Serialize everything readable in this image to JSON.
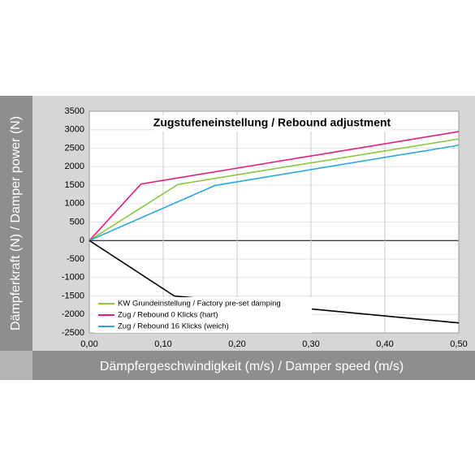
{
  "chart_data": {
    "type": "line",
    "title": "Zugstufeneinstellung / Rebound adjustment",
    "x_label": "Dämpfergeschwindigkeit (m/s) / Damper speed (m/s)",
    "y_label": "Dämpferkraft (N) / Damper power (N)",
    "xlim": [
      0,
      0.5
    ],
    "ylim": [
      -2500,
      3500
    ],
    "xticks": [
      {
        "value": 0,
        "label": "0,00"
      },
      {
        "value": 0.1,
        "label": "0,10"
      },
      {
        "value": 0.2,
        "label": "0,20"
      },
      {
        "value": 0.3,
        "label": "0,30"
      },
      {
        "value": 0.4,
        "label": "0,40"
      },
      {
        "value": 0.5,
        "label": "0,50"
      }
    ],
    "yticks": [
      -2500,
      -2000,
      -1500,
      -1000,
      -500,
      0,
      500,
      1000,
      1500,
      2000,
      2500,
      3000,
      3500
    ],
    "grid": true,
    "legend": "lower left",
    "series": [
      {
        "name": "KW Grundeinstellung / Factory pre-set damping",
        "color": "#8dc63f",
        "x": [
          0,
          0.12,
          0.5
        ],
        "values": [
          0,
          1520,
          2750
        ]
      },
      {
        "name": "Zug / Rebound 0 Klicks (hart)",
        "color": "#e6197f",
        "x": [
          0,
          0.07,
          0.5
        ],
        "values": [
          0,
          1530,
          2950
        ]
      },
      {
        "name": "Zug / Rebound 16 Klicks (weich)",
        "color": "#29a8e0",
        "x": [
          0,
          0.17,
          0.5
        ],
        "values": [
          0,
          1490,
          2580
        ]
      },
      {
        "color": "#000000",
        "x": [
          0,
          0.115,
          0.5
        ],
        "values": [
          0,
          -1500,
          -2230
        ]
      }
    ]
  }
}
